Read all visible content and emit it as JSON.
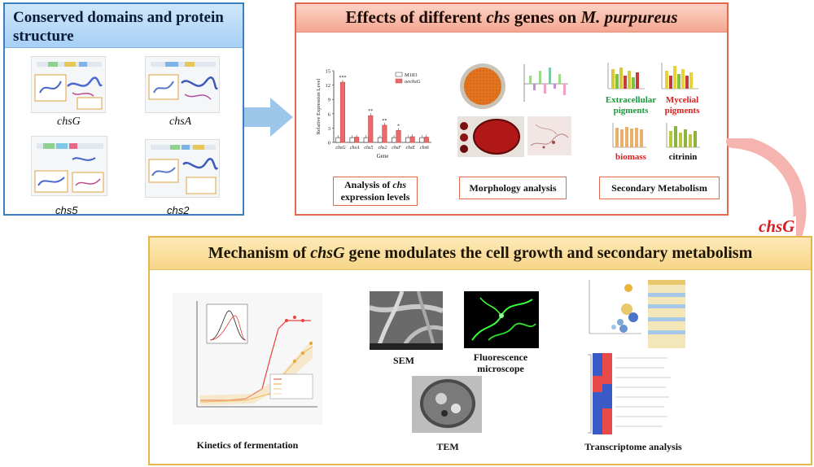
{
  "panel1": {
    "title": "Conserved domains and protein structure",
    "genes": [
      "chsG",
      "chsA",
      "chs5",
      "chs2"
    ]
  },
  "panel2": {
    "title_parts": [
      "Effects of different ",
      "chs",
      " genes on ",
      "M. purpureus"
    ],
    "analysis_label_parts": [
      "Analysis of ",
      "chs",
      " expression levels"
    ],
    "morphology_label": "Morphology analysis",
    "secondary_label": "Secondary Metabolism",
    "pigments": {
      "extracellular": "Extracellular pigments",
      "mycelial": "Mycelial pigments",
      "biomass": "biomass",
      "citrinin": "citrinin"
    }
  },
  "arrow_label": "chsG",
  "panel3": {
    "title_parts": [
      "Mechanism of ",
      "chsG",
      " gene modulates the cell growth and secondary metabolism"
    ],
    "kinetics_label": "Kinetics of fermentation",
    "sem_label": "SEM",
    "fluorescence_label": "Fluorescence microscope",
    "tem_label": "TEM",
    "transcriptome_label": "Transcriptome analysis"
  },
  "colors": {
    "panel1_border": "#3a7fc0",
    "panel2_border": "#e3694e",
    "panel3_border": "#e6b64a",
    "blue_arrow": "#9cc7ea",
    "pink_arrow": "#f6b4b0",
    "chsG_label": "#d42020"
  },
  "chart_data": {
    "type": "bar",
    "title": "",
    "xlabel": "Gene",
    "ylabel": "Relative Expression Level",
    "categories": [
      "chsG",
      "chsA",
      "chs5",
      "chs2",
      "chsF",
      "chsE",
      "chs6"
    ],
    "ylim": [
      0,
      15
    ],
    "yticks": [
      0,
      3,
      6,
      9,
      12,
      15
    ],
    "series": [
      {
        "name": "M183",
        "color": "#ffffff",
        "values": [
          1,
          1,
          1,
          1,
          1,
          1,
          1
        ]
      },
      {
        "name": "oechsG",
        "color": "#e86a6a",
        "values": [
          12.6,
          1.1,
          5.6,
          3.6,
          2.5,
          1.2,
          1.1
        ]
      }
    ],
    "annotations": [
      "***",
      "",
      "**",
      "**",
      "*",
      "",
      ""
    ],
    "legend": "top-right"
  }
}
